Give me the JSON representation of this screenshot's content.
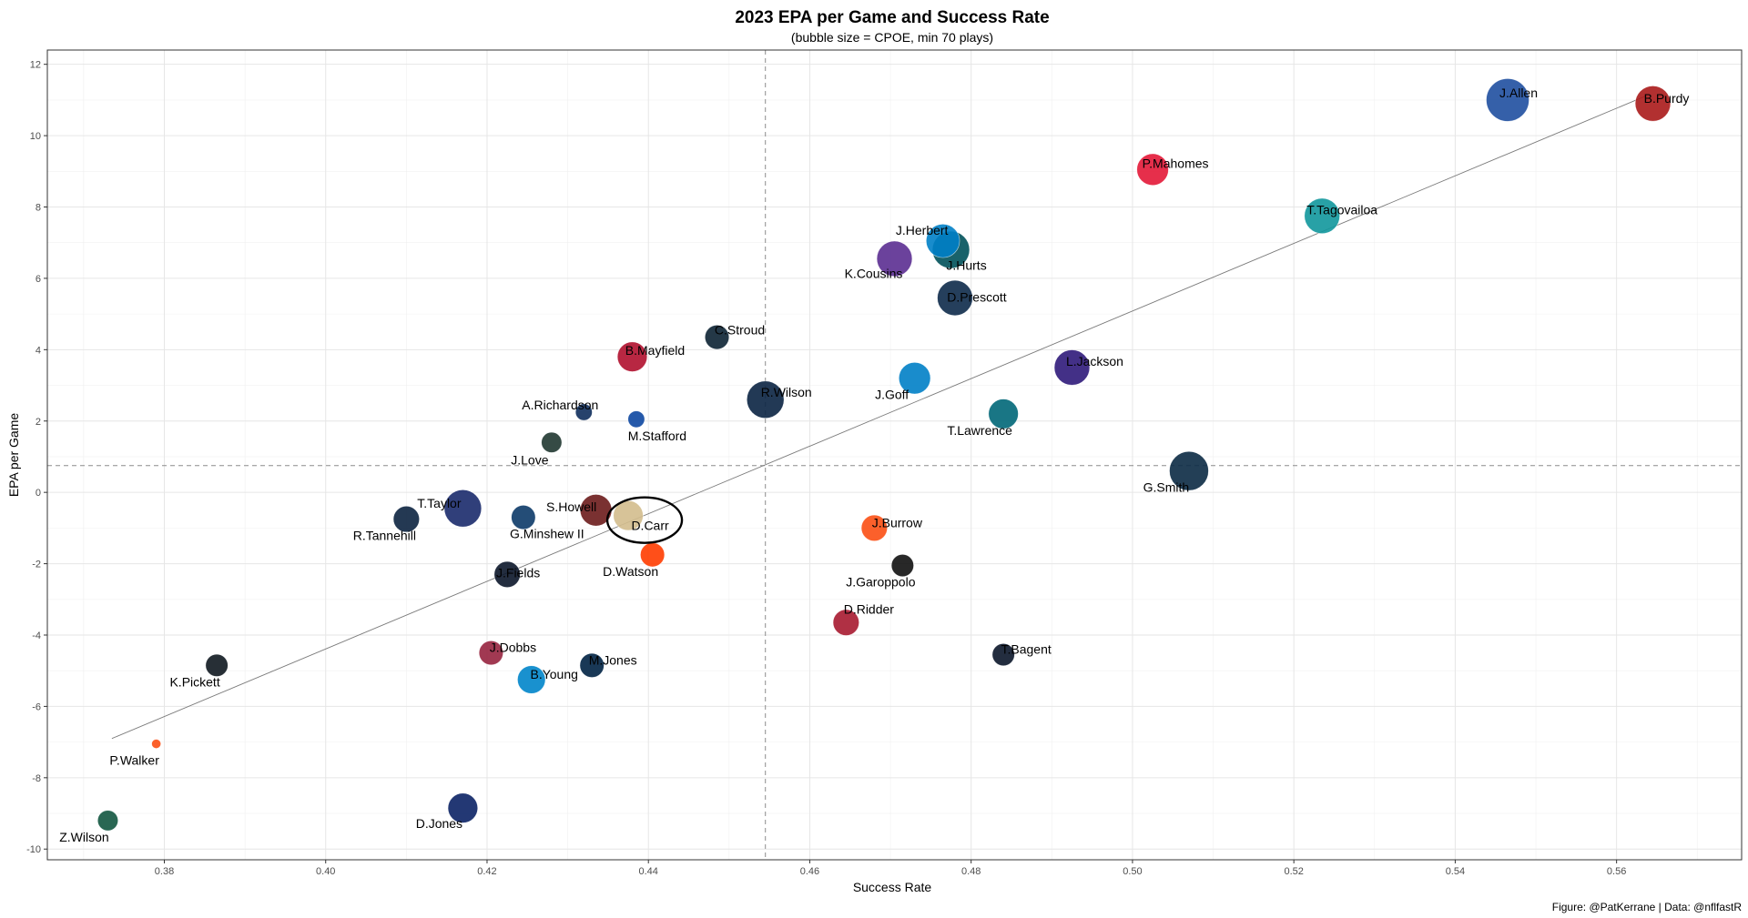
{
  "chart_data": {
    "type": "scatter",
    "title": "2023 EPA per Game and Success Rate",
    "subtitle": "(bubble size = CPOE, min 70 plays)",
    "xlabel": "Success Rate",
    "ylabel": "EPA per Game",
    "caption": "Figure: @PatKerrane | Data: @nflfastR",
    "xlim": [
      0.3655,
      0.5755
    ],
    "ylim": [
      -10.3,
      12.4
    ],
    "x_ticks": [
      "0.38",
      "0.40",
      "0.42",
      "0.44",
      "0.46",
      "0.48",
      "0.50",
      "0.52",
      "0.54",
      "0.56"
    ],
    "y_ticks": [
      "-10",
      "-8",
      "-6",
      "-4",
      "-2",
      "0",
      "2",
      "4",
      "6",
      "8",
      "10",
      "12"
    ],
    "grid": true,
    "reference_lines": {
      "x_mean": 0.4545,
      "y_mean": 0.75
    },
    "trend_line": {
      "x": [
        0.3735,
        0.5635
      ],
      "y": [
        -6.9,
        11.1
      ]
    },
    "highlight": {
      "name": "D.Carr"
    },
    "points": [
      {
        "name": "J.Allen",
        "x": 0.5465,
        "y": 11.0,
        "size": 10,
        "color": "#1f4fa0"
      },
      {
        "name": "B.Purdy",
        "x": 0.5645,
        "y": 10.9,
        "size": 8,
        "color": "#aa1a1a"
      },
      {
        "name": "P.Mahomes",
        "x": 0.5025,
        "y": 9.05,
        "size": 7,
        "color": "#e31837"
      },
      {
        "name": "T.Tagovailoa",
        "x": 0.5235,
        "y": 7.75,
        "size": 8,
        "color": "#11979c"
      },
      {
        "name": "J.Herbert",
        "x": 0.4765,
        "y": 7.05,
        "size": 7.5,
        "color": "#0080c6"
      },
      {
        "name": "J.Hurts",
        "x": 0.4775,
        "y": 6.8,
        "size": 8.5,
        "color": "#00515a"
      },
      {
        "name": "K.Cousins",
        "x": 0.4705,
        "y": 6.55,
        "size": 8,
        "color": "#5b2d91"
      },
      {
        "name": "D.Prescott",
        "x": 0.478,
        "y": 5.45,
        "size": 8,
        "color": "#0d2a4a"
      },
      {
        "name": "C.Stroud",
        "x": 0.4485,
        "y": 4.35,
        "size": 5,
        "color": "#0c2233"
      },
      {
        "name": "B.Mayfield",
        "x": 0.438,
        "y": 3.8,
        "size": 6.5,
        "color": "#b0102d"
      },
      {
        "name": "L.Jackson",
        "x": 0.4925,
        "y": 3.5,
        "size": 8,
        "color": "#2f1a7a"
      },
      {
        "name": "J.Goff",
        "x": 0.473,
        "y": 3.2,
        "size": 7,
        "color": "#0080c6"
      },
      {
        "name": "R.Wilson",
        "x": 0.4545,
        "y": 2.6,
        "size": 8.5,
        "color": "#0a2343"
      },
      {
        "name": "A.Richardson",
        "x": 0.432,
        "y": 2.25,
        "size": 3,
        "color": "#0e2e5c"
      },
      {
        "name": "T.Lawrence",
        "x": 0.484,
        "y": 2.2,
        "size": 6.5,
        "color": "#006778"
      },
      {
        "name": "M.Stafford",
        "x": 0.4385,
        "y": 2.05,
        "size": 3,
        "color": "#0d47a1"
      },
      {
        "name": "J.Love",
        "x": 0.428,
        "y": 1.4,
        "size": 4,
        "color": "#203731"
      },
      {
        "name": "G.Smith",
        "x": 0.507,
        "y": 0.6,
        "size": 9,
        "color": "#0b2a44"
      },
      {
        "name": "S.Howell",
        "x": 0.4335,
        "y": -0.5,
        "size": 7,
        "color": "#6b1b1b"
      },
      {
        "name": "D.Carr",
        "x": 0.4375,
        "y": -0.65,
        "size": 6.5,
        "color": "#d3bc8d"
      },
      {
        "name": "T.Taylor",
        "x": 0.417,
        "y": -0.45,
        "size": 8.5,
        "color": "#1a2a6c"
      },
      {
        "name": "G.Minshew II",
        "x": 0.4245,
        "y": -0.7,
        "size": 5,
        "color": "#0c3a68"
      },
      {
        "name": "R.Tannehill",
        "x": 0.41,
        "y": -0.75,
        "size": 5.5,
        "color": "#0c2340"
      },
      {
        "name": "J.Burrow",
        "x": 0.468,
        "y": -1.0,
        "size": 5.5,
        "color": "#fb4f14"
      },
      {
        "name": "D.Watson",
        "x": 0.4405,
        "y": -1.75,
        "size": 5,
        "color": "#ff3c00"
      },
      {
        "name": "J.Garoppolo",
        "x": 0.4715,
        "y": -2.05,
        "size": 4.5,
        "color": "#111111"
      },
      {
        "name": "J.Fields",
        "x": 0.4225,
        "y": -2.3,
        "size": 5.5,
        "color": "#0b162a"
      },
      {
        "name": "D.Ridder",
        "x": 0.4645,
        "y": -3.65,
        "size": 5.5,
        "color": "#a71930"
      },
      {
        "name": "T.Bagent",
        "x": 0.484,
        "y": -4.55,
        "size": 4.5,
        "color": "#0b162a"
      },
      {
        "name": "J.Dobbs",
        "x": 0.4205,
        "y": -4.5,
        "size": 5,
        "color": "#97233f"
      },
      {
        "name": "M.Jones",
        "x": 0.433,
        "y": -4.85,
        "size": 5,
        "color": "#002244"
      },
      {
        "name": "K.Pickett",
        "x": 0.3865,
        "y": -4.85,
        "size": 4.5,
        "color": "#101820"
      },
      {
        "name": "B.Young",
        "x": 0.4255,
        "y": -5.25,
        "size": 6,
        "color": "#0085ca"
      },
      {
        "name": "P.Walker",
        "x": 0.379,
        "y": -7.05,
        "size": 1,
        "color": "#fb4f14"
      },
      {
        "name": "D.Jones",
        "x": 0.417,
        "y": -8.85,
        "size": 6.5,
        "color": "#0b2265"
      },
      {
        "name": "Z.Wilson",
        "x": 0.373,
        "y": -9.2,
        "size": 4,
        "color": "#125740"
      }
    ]
  }
}
